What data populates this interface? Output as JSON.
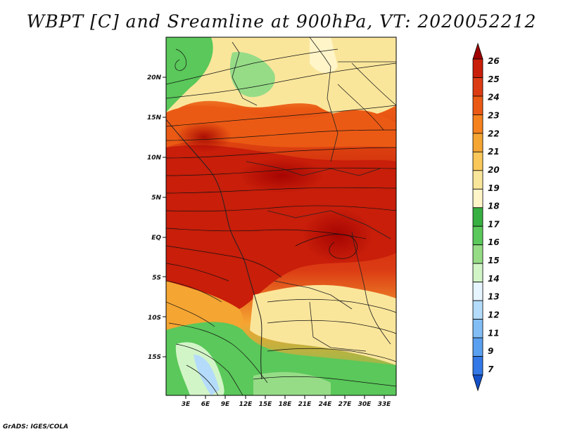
{
  "title": "WBPT [C] and Sreamline at 900hPa, VT: 2020052212",
  "credit": "GrADS: IGES/COLA",
  "map": {
    "lat_labels": [
      "20N",
      "15N",
      "10N",
      "5N",
      "EQ",
      "5S",
      "10S",
      "15S"
    ],
    "lon_labels": [
      "3E",
      "6E",
      "9E",
      "12E",
      "15E",
      "18E",
      "21E",
      "24E",
      "27E",
      "30E",
      "33E"
    ]
  },
  "colorbar": {
    "labels": [
      "26",
      "25",
      "24",
      "23",
      "22",
      "21",
      "20",
      "19",
      "18",
      "17",
      "16",
      "15",
      "14",
      "13",
      "12",
      "11",
      "9",
      "7"
    ],
    "colors": [
      "#a00000",
      "#c81e0a",
      "#dc3c14",
      "#eb5a14",
      "#f5821e",
      "#f5a532",
      "#fac85a",
      "#fae69b",
      "#fff5c8",
      "#37af41",
      "#5ac85a",
      "#96dc87",
      "#d2f5c8",
      "#e6f5ff",
      "#b4dcfa",
      "#82bef5",
      "#5aa0f0",
      "#3278e6",
      "#1450c8"
    ],
    "units": "C"
  }
}
